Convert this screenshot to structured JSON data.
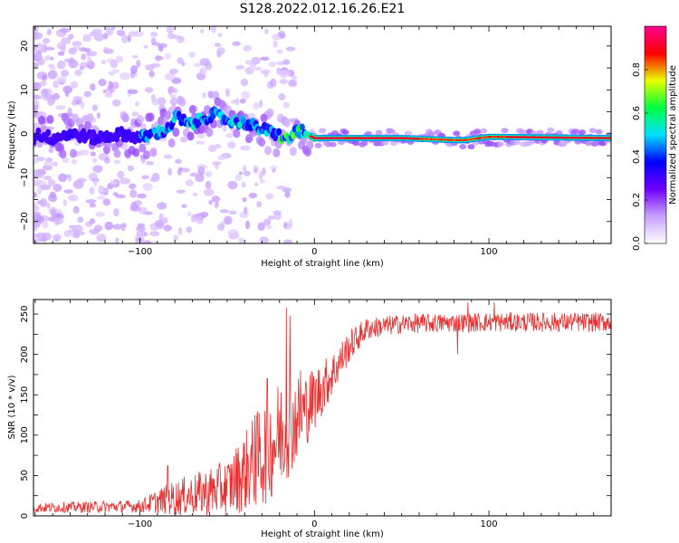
{
  "title": "S128.2022.012.16.26.E21",
  "chart_data": [
    {
      "type": "heatmap",
      "xlabel": "Height of straight line (km)",
      "ylabel": "Frequency (Hz)",
      "xlim": [
        -161,
        170
      ],
      "ylim": [
        -25,
        24.5
      ],
      "xticks": [
        -100,
        0,
        100
      ],
      "yticks": [
        -20,
        -10,
        0,
        10,
        20
      ],
      "grid": false,
      "colorbar": {
        "label": "Normalized spectral amplitude",
        "ticks": [
          0.0,
          0.2,
          0.4,
          0.6,
          0.8
        ],
        "range": [
          0,
          1
        ],
        "colormap": [
          "#ffffff",
          "#c8a0ff",
          "#7000ff",
          "#0000ff",
          "#00e0ff",
          "#00ff40",
          "#e8ff00",
          "#ff0000",
          "#ff0090"
        ]
      },
      "ridge": [
        {
          "x": -160,
          "y": 0.0
        },
        {
          "x": -150,
          "y": -1.0
        },
        {
          "x": -140,
          "y": 0.0
        },
        {
          "x": -125,
          "y": -1.0
        },
        {
          "x": -110,
          "y": 0.0
        },
        {
          "x": -100,
          "y": -1.0
        },
        {
          "x": -92,
          "y": 0.0
        },
        {
          "x": -84,
          "y": 1.0
        },
        {
          "x": -79,
          "y": 4.0
        },
        {
          "x": -72,
          "y": 2.0
        },
        {
          "x": -66,
          "y": 3.0
        },
        {
          "x": -58,
          "y": 4.5
        },
        {
          "x": -50,
          "y": 3.0
        },
        {
          "x": -40,
          "y": 2.5
        },
        {
          "x": -30,
          "y": 1.0
        },
        {
          "x": -22,
          "y": 0.0
        },
        {
          "x": -15,
          "y": -1.5
        },
        {
          "x": -10,
          "y": 1.0
        },
        {
          "x": -5,
          "y": 0.0
        },
        {
          "x": 0,
          "y": -1.0
        },
        {
          "x": 50,
          "y": -1.0
        },
        {
          "x": 85,
          "y": -1.5
        },
        {
          "x": 100,
          "y": -0.7
        },
        {
          "x": 170,
          "y": -1.0
        }
      ]
    },
    {
      "type": "line",
      "xlabel": "Height of straight line (km)",
      "ylabel": "SNR (10 * v/v)",
      "xlim": [
        -161,
        170
      ],
      "ylim": [
        0,
        268
      ],
      "xticks": [
        -100,
        0,
        100
      ],
      "yticks": [
        0,
        50,
        100,
        150,
        200,
        250
      ],
      "grid": false,
      "color": "#e83030",
      "trend": [
        {
          "x": -161,
          "y": 10,
          "noise": 6
        },
        {
          "x": -100,
          "y": 12,
          "noise": 8
        },
        {
          "x": -90,
          "y": 18,
          "noise": 15
        },
        {
          "x": -80,
          "y": 22,
          "noise": 22
        },
        {
          "x": -65,
          "y": 28,
          "noise": 28
        },
        {
          "x": -50,
          "y": 35,
          "noise": 35
        },
        {
          "x": -40,
          "y": 55,
          "noise": 50
        },
        {
          "x": -30,
          "y": 75,
          "noise": 65
        },
        {
          "x": -20,
          "y": 100,
          "noise": 70
        },
        {
          "x": -10,
          "y": 120,
          "noise": 55
        },
        {
          "x": 0,
          "y": 145,
          "noise": 40
        },
        {
          "x": 10,
          "y": 175,
          "noise": 28
        },
        {
          "x": 20,
          "y": 210,
          "noise": 20
        },
        {
          "x": 30,
          "y": 232,
          "noise": 14
        },
        {
          "x": 50,
          "y": 238,
          "noise": 12
        },
        {
          "x": 100,
          "y": 240,
          "noise": 12
        },
        {
          "x": 170,
          "y": 240,
          "noise": 12
        }
      ],
      "spikes": [
        {
          "x": -84,
          "y": 62
        },
        {
          "x": -34,
          "y": 125
        },
        {
          "x": -27,
          "y": 170
        },
        {
          "x": -16,
          "y": 258
        },
        {
          "x": -14,
          "y": 248
        },
        {
          "x": -8,
          "y": 180
        },
        {
          "x": 88,
          "y": 265
        },
        {
          "x": 103,
          "y": 265
        },
        {
          "x": 82,
          "y": 200
        }
      ]
    }
  ]
}
